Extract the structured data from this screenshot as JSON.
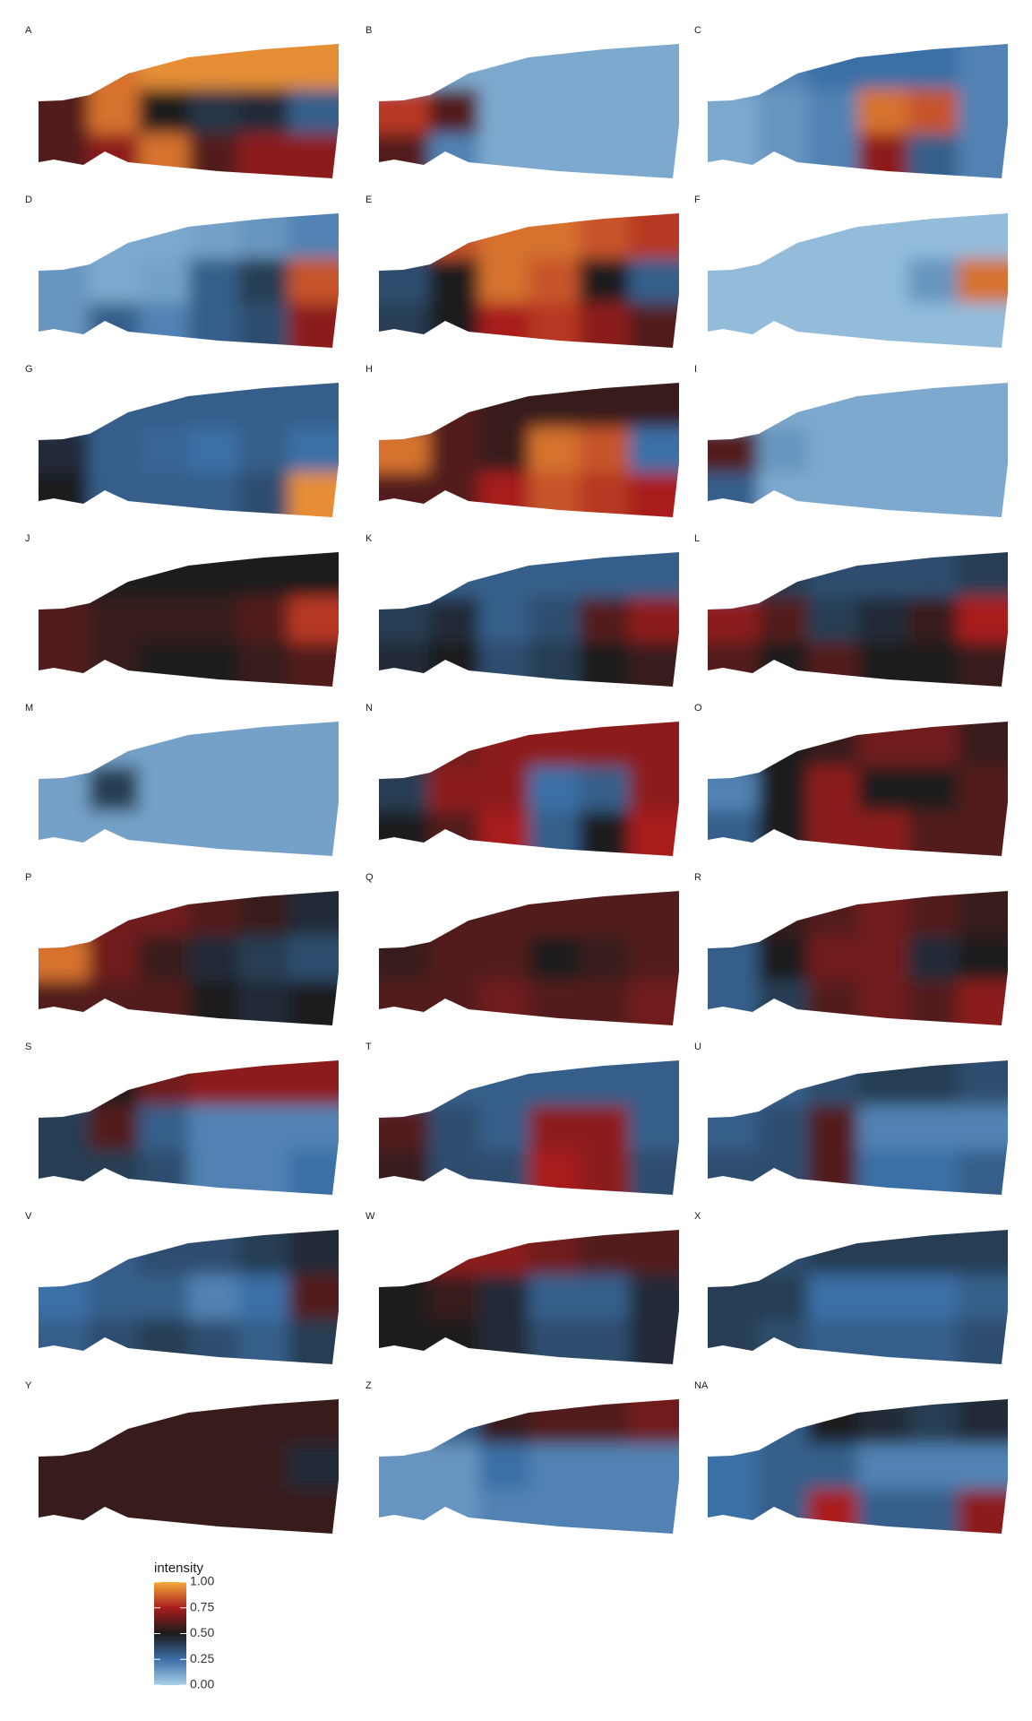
{
  "chart_data": {
    "type": "heatmap",
    "colormap": [
      "#a9cfe8",
      "#3b6fa6",
      "#1b1b1b",
      "#a81d1d",
      "#f4aa3a"
    ],
    "clim": [
      0,
      1
    ],
    "legend": {
      "title": "intensity",
      "ticks": [
        {
          "value": 0,
          "label": "0.00"
        },
        {
          "value": 0.25,
          "label": "0.25"
        },
        {
          "value": 0.5,
          "label": "0.50"
        },
        {
          "value": 0.75,
          "label": "0.75"
        },
        {
          "value": 1,
          "label": "1.00"
        }
      ]
    },
    "panels": [
      {
        "label": "A",
        "values": [
          [
            0.5,
            0.9,
            0.95,
            0.95,
            0.95,
            0.95
          ],
          [
            0.6,
            0.9,
            0.5,
            0.42,
            0.45,
            0.3
          ],
          [
            0.6,
            0.7,
            0.9,
            0.6,
            0.7,
            0.7
          ]
        ]
      },
      {
        "label": "B",
        "values": [
          [
            0.1,
            0.1,
            0.1,
            0.1,
            0.1,
            0.1
          ],
          [
            0.8,
            0.6,
            0.1,
            0.1,
            0.1,
            0.1
          ],
          [
            0.6,
            0.2,
            0.1,
            0.1,
            0.1,
            0.1
          ]
        ]
      },
      {
        "label": "C",
        "values": [
          [
            0.2,
            0.2,
            0.25,
            0.25,
            0.25,
            0.2
          ],
          [
            0.1,
            0.15,
            0.2,
            0.9,
            0.85,
            0.2
          ],
          [
            0.1,
            0.15,
            0.2,
            0.7,
            0.3,
            0.2
          ]
        ]
      },
      {
        "label": "D",
        "values": [
          [
            0.1,
            0.1,
            0.1,
            0.12,
            0.15,
            0.2
          ],
          [
            0.15,
            0.1,
            0.12,
            0.3,
            0.4,
            0.85
          ],
          [
            0.15,
            0.3,
            0.2,
            0.3,
            0.35,
            0.7
          ]
        ]
      },
      {
        "label": "E",
        "values": [
          [
            0.4,
            0.85,
            0.9,
            0.9,
            0.85,
            0.8
          ],
          [
            0.35,
            0.5,
            0.9,
            0.85,
            0.5,
            0.3
          ],
          [
            0.4,
            0.5,
            0.75,
            0.8,
            0.7,
            0.6
          ]
        ]
      },
      {
        "label": "F",
        "values": [
          [
            0.05,
            0.05,
            0.05,
            0.05,
            0.05,
            0.05
          ],
          [
            0.05,
            0.05,
            0.05,
            0.05,
            0.15,
            0.9
          ],
          [
            0.05,
            0.05,
            0.05,
            0.05,
            0.05,
            0.05
          ]
        ]
      },
      {
        "label": "G",
        "values": [
          [
            0.3,
            0.3,
            0.3,
            0.3,
            0.3,
            0.3
          ],
          [
            0.45,
            0.3,
            0.28,
            0.25,
            0.3,
            0.25
          ],
          [
            0.5,
            0.3,
            0.3,
            0.3,
            0.35,
            0.95
          ]
        ]
      },
      {
        "label": "H",
        "values": [
          [
            0.4,
            0.6,
            0.55,
            0.55,
            0.55,
            0.55
          ],
          [
            0.9,
            0.6,
            0.55,
            0.9,
            0.85,
            0.25
          ],
          [
            0.6,
            0.6,
            0.75,
            0.85,
            0.8,
            0.75
          ]
        ]
      },
      {
        "label": "I",
        "values": [
          [
            0.1,
            0.1,
            0.1,
            0.1,
            0.1,
            0.1
          ],
          [
            0.6,
            0.15,
            0.1,
            0.1,
            0.1,
            0.1
          ],
          [
            0.3,
            0.1,
            0.1,
            0.1,
            0.1,
            0.1
          ]
        ]
      },
      {
        "label": "J",
        "values": [
          [
            0.5,
            0.5,
            0.5,
            0.5,
            0.5,
            0.5
          ],
          [
            0.6,
            0.55,
            0.55,
            0.55,
            0.6,
            0.8
          ],
          [
            0.6,
            0.55,
            0.5,
            0.5,
            0.55,
            0.6
          ]
        ]
      },
      {
        "label": "K",
        "values": [
          [
            0.3,
            0.3,
            0.3,
            0.3,
            0.3,
            0.3
          ],
          [
            0.4,
            0.45,
            0.3,
            0.35,
            0.6,
            0.7
          ],
          [
            0.45,
            0.5,
            0.35,
            0.4,
            0.5,
            0.55
          ]
        ]
      },
      {
        "label": "L",
        "values": [
          [
            0.3,
            0.4,
            0.35,
            0.35,
            0.35,
            0.4
          ],
          [
            0.7,
            0.6,
            0.4,
            0.45,
            0.55,
            0.75
          ],
          [
            0.6,
            0.5,
            0.6,
            0.5,
            0.5,
            0.55
          ]
        ]
      },
      {
        "label": "M",
        "values": [
          [
            0.12,
            0.12,
            0.12,
            0.12,
            0.12,
            0.12
          ],
          [
            0.12,
            0.4,
            0.12,
            0.12,
            0.12,
            0.12
          ],
          [
            0.12,
            0.12,
            0.12,
            0.12,
            0.12,
            0.12
          ]
        ]
      },
      {
        "label": "N",
        "values": [
          [
            0.6,
            0.65,
            0.7,
            0.7,
            0.7,
            0.7
          ],
          [
            0.4,
            0.7,
            0.7,
            0.25,
            0.3,
            0.7
          ],
          [
            0.5,
            0.6,
            0.75,
            0.3,
            0.5,
            0.75
          ]
        ]
      },
      {
        "label": "O",
        "values": [
          [
            0.5,
            0.5,
            0.55,
            0.65,
            0.65,
            0.55
          ],
          [
            0.2,
            0.5,
            0.7,
            0.5,
            0.5,
            0.6
          ],
          [
            0.3,
            0.5,
            0.7,
            0.7,
            0.6,
            0.6
          ]
        ]
      },
      {
        "label": "P",
        "values": [
          [
            0.6,
            0.65,
            0.65,
            0.6,
            0.55,
            0.45
          ],
          [
            0.9,
            0.65,
            0.55,
            0.45,
            0.4,
            0.35
          ],
          [
            0.6,
            0.6,
            0.6,
            0.5,
            0.45,
            0.5
          ]
        ]
      },
      {
        "label": "Q",
        "values": [
          [
            0.6,
            0.6,
            0.6,
            0.6,
            0.6,
            0.6
          ],
          [
            0.55,
            0.6,
            0.6,
            0.5,
            0.55,
            0.6
          ],
          [
            0.6,
            0.6,
            0.65,
            0.6,
            0.6,
            0.65
          ]
        ]
      },
      {
        "label": "R",
        "values": [
          [
            0.55,
            0.55,
            0.6,
            0.65,
            0.6,
            0.55
          ],
          [
            0.3,
            0.5,
            0.65,
            0.65,
            0.45,
            0.5
          ],
          [
            0.3,
            0.4,
            0.6,
            0.65,
            0.6,
            0.7
          ]
        ]
      },
      {
        "label": "S",
        "values": [
          [
            0.3,
            0.5,
            0.65,
            0.7,
            0.7,
            0.7
          ],
          [
            0.4,
            0.6,
            0.3,
            0.2,
            0.2,
            0.2
          ],
          [
            0.4,
            0.4,
            0.35,
            0.2,
            0.2,
            0.25
          ]
        ]
      },
      {
        "label": "T",
        "values": [
          [
            0.3,
            0.3,
            0.3,
            0.3,
            0.3,
            0.3
          ],
          [
            0.6,
            0.35,
            0.3,
            0.7,
            0.7,
            0.3
          ],
          [
            0.55,
            0.35,
            0.35,
            0.75,
            0.7,
            0.35
          ]
        ]
      },
      {
        "label": "U",
        "values": [
          [
            0.3,
            0.3,
            0.35,
            0.4,
            0.4,
            0.35
          ],
          [
            0.3,
            0.35,
            0.6,
            0.2,
            0.2,
            0.2
          ],
          [
            0.35,
            0.35,
            0.6,
            0.25,
            0.25,
            0.3
          ]
        ]
      },
      {
        "label": "V",
        "values": [
          [
            0.3,
            0.3,
            0.35,
            0.35,
            0.4,
            0.45
          ],
          [
            0.25,
            0.3,
            0.3,
            0.2,
            0.25,
            0.6
          ],
          [
            0.3,
            0.35,
            0.4,
            0.35,
            0.3,
            0.4
          ]
        ]
      },
      {
        "label": "W",
        "values": [
          [
            0.5,
            0.7,
            0.7,
            0.65,
            0.6,
            0.6
          ],
          [
            0.5,
            0.55,
            0.45,
            0.3,
            0.3,
            0.45
          ],
          [
            0.5,
            0.5,
            0.45,
            0.35,
            0.35,
            0.45
          ]
        ]
      },
      {
        "label": "X",
        "values": [
          [
            0.35,
            0.35,
            0.4,
            0.4,
            0.4,
            0.4
          ],
          [
            0.4,
            0.4,
            0.25,
            0.25,
            0.25,
            0.3
          ],
          [
            0.4,
            0.35,
            0.3,
            0.3,
            0.3,
            0.35
          ]
        ]
      },
      {
        "label": "Y",
        "values": [
          [
            0.55,
            0.55,
            0.55,
            0.55,
            0.55,
            0.55
          ],
          [
            0.55,
            0.55,
            0.55,
            0.55,
            0.55,
            0.45
          ],
          [
            0.55,
            0.55,
            0.55,
            0.55,
            0.55,
            0.55
          ]
        ]
      },
      {
        "label": "Z",
        "values": [
          [
            0.15,
            0.3,
            0.55,
            0.6,
            0.6,
            0.65
          ],
          [
            0.15,
            0.15,
            0.25,
            0.2,
            0.2,
            0.2
          ],
          [
            0.15,
            0.15,
            0.2,
            0.2,
            0.2,
            0.2
          ]
        ]
      },
      {
        "label": "NA",
        "values": [
          [
            0.2,
            0.3,
            0.5,
            0.45,
            0.4,
            0.45
          ],
          [
            0.25,
            0.3,
            0.3,
            0.2,
            0.2,
            0.2
          ],
          [
            0.25,
            0.3,
            0.75,
            0.3,
            0.3,
            0.7
          ]
        ]
      }
    ]
  }
}
